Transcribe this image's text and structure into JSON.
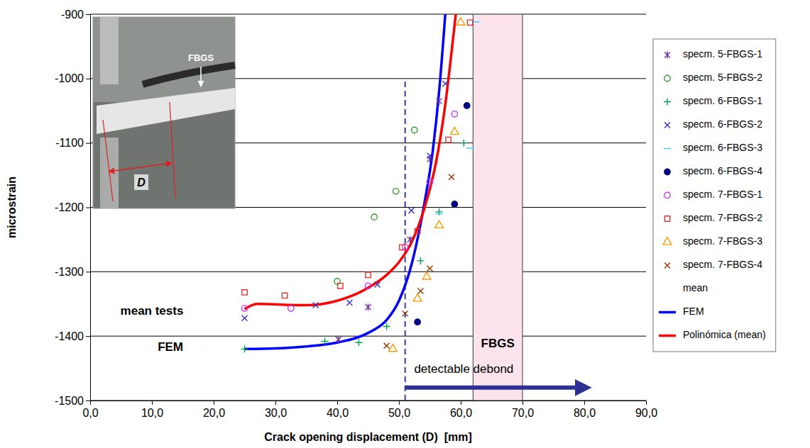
{
  "chart_data": {
    "type": "scatter",
    "x_label": "Crack opening displacement (D)  [mm]",
    "y_label": "microstrain",
    "xlim": [
      0,
      90
    ],
    "xticks": [
      {
        "value": 0,
        "label": "0,0"
      },
      {
        "value": 10,
        "label": "10,0"
      },
      {
        "value": 20,
        "label": "20,0"
      },
      {
        "value": 30,
        "label": "30,0"
      },
      {
        "value": 40,
        "label": "40,0"
      },
      {
        "value": 50,
        "label": "50,0"
      },
      {
        "value": 60,
        "label": "60,0"
      },
      {
        "value": 70,
        "label": "70,0"
      },
      {
        "value": 80,
        "label": "80,0"
      },
      {
        "value": 90,
        "label": "90,0"
      }
    ],
    "ylim": [
      -1500,
      -900
    ],
    "yticks": [
      -1500,
      -1400,
      -1300,
      -1200,
      -1100,
      -1000,
      -900
    ],
    "grid": true,
    "legend": "right",
    "series": [
      {
        "name": "specm. 5-FBGS-1",
        "color": "#7030a0",
        "marker": "asterisk",
        "x": [
          40.2,
          45,
          51.8,
          55,
          56.5
        ],
        "values": [
          -1405,
          -1355,
          -1250,
          -1125,
          -1035
        ]
      },
      {
        "name": "specm. 5-FBGS-2",
        "color": "#339933",
        "marker": "circle",
        "x": [
          40,
          46,
          49.5,
          52.5
        ],
        "values": [
          -1315,
          -1215,
          -1175,
          -1080
        ]
      },
      {
        "name": "specm. 6-FBGS-1",
        "color": "#00a050",
        "marker": "plus",
        "x": [
          25,
          38,
          43.5,
          48,
          53.5,
          56.5,
          60.5
        ],
        "values": [
          -1420,
          -1408,
          -1410,
          -1385,
          -1283,
          -1207,
          -1100
        ]
      },
      {
        "name": "specm. 6-FBGS-2",
        "color": "#3333cc",
        "marker": "x",
        "x": [
          25,
          36.5,
          42,
          46.5,
          52,
          55,
          57.5
        ],
        "values": [
          -1372,
          -1352,
          -1348,
          -1320,
          -1205,
          -1120,
          -1008
        ]
      },
      {
        "name": "specm. 6-FBGS-3",
        "color": "#33ccff",
        "marker": "dash",
        "x": [
          56.5,
          61.5,
          62.5
        ],
        "values": [
          -1210,
          -1108,
          -912
        ]
      },
      {
        "name": "specm. 6-FBGS-4",
        "color": "#000080",
        "marker": "dot",
        "x": [
          53,
          59,
          61
        ],
        "values": [
          -1378,
          -1195,
          -1042
        ]
      },
      {
        "name": "specm. 7-FBGS-1",
        "color": "#cc33ff",
        "marker": "circle",
        "x": [
          25,
          32.5,
          45,
          51,
          55,
          59
        ],
        "values": [
          -1357,
          -1357,
          -1322,
          -1262,
          -1160,
          -1055
        ]
      },
      {
        "name": "specm. 7-FBGS-2",
        "color": "#e83030",
        "marker": "square",
        "x": [
          25,
          31.5,
          40.5,
          45,
          50.5,
          53,
          58,
          61.5
        ],
        "values": [
          -1332,
          -1337,
          -1322,
          -1305,
          -1262,
          -1237,
          -1095,
          -913
        ]
      },
      {
        "name": "specm. 7-FBGS-3",
        "color": "#ff9900",
        "marker": "triangle",
        "x": [
          49,
          53,
          54.5,
          56.5,
          59,
          60
        ],
        "values": [
          -1420,
          -1342,
          -1308,
          -1228,
          -1083,
          -913
        ]
      },
      {
        "name": "specm. 7-FBGS-4",
        "color": "#993300",
        "marker": "x",
        "x": [
          48,
          51,
          53.5,
          55,
          58.5
        ],
        "values": [
          -1415,
          -1365,
          -1330,
          -1295,
          -1153
        ]
      },
      {
        "name": "mean",
        "marker": "none",
        "x": [],
        "values": []
      },
      {
        "name": "FEM",
        "type": "line",
        "color": "#0000ff",
        "marker": "none",
        "line_style": "solid",
        "x": [
          25,
          30,
          35,
          40,
          45,
          48,
          50,
          52,
          54,
          55.5,
          56.5,
          57.5
        ],
        "values": [
          -1420,
          -1419,
          -1416,
          -1410,
          -1395,
          -1375,
          -1345,
          -1290,
          -1200,
          -1110,
          -1020,
          -900
        ]
      },
      {
        "name": "Polinómica (mean)",
        "type": "line",
        "color": "#ff0000",
        "marker": "none",
        "line_style": "solid",
        "x": [
          25,
          27,
          35,
          40,
          45,
          48,
          50,
          52,
          54,
          56,
          57.5,
          58.5,
          59.2
        ],
        "values": [
          -1358,
          -1350,
          -1352,
          -1345,
          -1325,
          -1305,
          -1285,
          -1255,
          -1205,
          -1130,
          -1040,
          -960,
          -900
        ]
      }
    ],
    "annotations": [
      {
        "text": "mean tests",
        "x": 10,
        "y": -1362
      },
      {
        "text": "FEM",
        "x": 13,
        "y": -1418
      },
      {
        "text": "FBGS",
        "x": 66,
        "y": -1412
      },
      {
        "text": "detectable debond",
        "x": 60.5,
        "y": -1452
      }
    ],
    "regions": [
      {
        "x": [
          62,
          70
        ],
        "color": "#fde3ec"
      }
    ],
    "vlines": [
      {
        "x": 51,
        "y": [
          -1500,
          -1000
        ],
        "color": "#3a3ab0",
        "line_style": "dashed"
      }
    ],
    "arrows": [
      {
        "x": [
          51,
          81
        ],
        "y": -1480,
        "color": "#2e3192"
      }
    ],
    "inset_labels": [
      "FBGS",
      "D"
    ]
  }
}
